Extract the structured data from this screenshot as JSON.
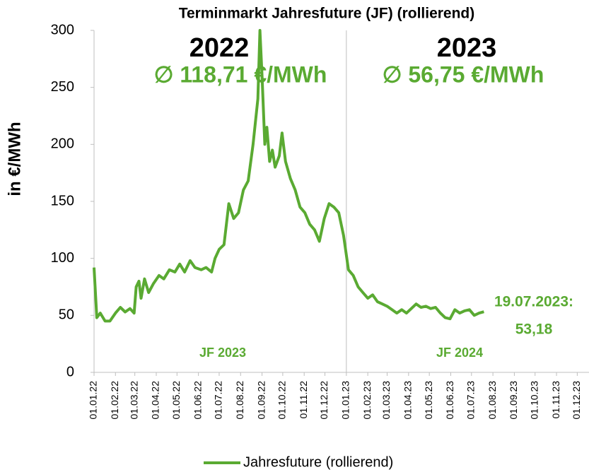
{
  "chart_data": {
    "type": "line",
    "title": "Terminmarkt Jahresfuture (JF) (rollierend)",
    "y_label": "in €/MWh",
    "annotations": [
      "2022",
      "∅ 118,71 €/MWh",
      "2023",
      "∅ 56,75 €/MWh",
      "JF 2023",
      "JF 2024",
      "19.07.2023:",
      "53,18"
    ],
    "xlim": [
      "01.01.22",
      "18.12.23"
    ],
    "xticks": [
      "01.01.22",
      "01.02.22",
      "01.03.22",
      "01.04.22",
      "01.05.22",
      "01.06.22",
      "01.07.22",
      "01.08.22",
      "01.09.22",
      "01.10.22",
      "01.11.22",
      "01.12.22",
      "01.01.23",
      "01.02.23",
      "01.03.23",
      "01.04.23",
      "01.05.23",
      "01.06.23",
      "01.07.23",
      "01.08.23",
      "01.09.23",
      "01.10.23",
      "01.11.23",
      "01.12.23"
    ],
    "ylim": [
      0,
      300
    ],
    "yticks": [
      0,
      50,
      100,
      150,
      200,
      250,
      300
    ],
    "grid": false,
    "legend": "bottom",
    "x": [
      "01.01.22",
      "05.01.22",
      "10.01.22",
      "17.01.22",
      "24.01.22",
      "01.02.22",
      "08.02.22",
      "15.02.22",
      "22.02.22",
      "28.02.22",
      "03.03.22",
      "07.03.22",
      "10.03.22",
      "15.03.22",
      "21.03.22",
      "28.03.22",
      "05.04.22",
      "12.04.22",
      "20.04.22",
      "28.04.22",
      "05.05.22",
      "12.05.22",
      "20.05.22",
      "27.05.22",
      "05.06.22",
      "12.06.22",
      "20.06.22",
      "25.06.22",
      "01.07.22",
      "08.07.22",
      "15.07.22",
      "22.07.22",
      "29.07.22",
      "05.08.22",
      "12.08.22",
      "19.08.22",
      "26.08.22",
      "29.08.22",
      "01.09.22",
      "05.09.22",
      "08.09.22",
      "12.09.22",
      "16.09.22",
      "20.09.22",
      "26.09.22",
      "30.09.22",
      "05.10.22",
      "12.10.22",
      "19.10.22",
      "26.10.22",
      "02.11.22",
      "09.11.22",
      "16.11.22",
      "23.11.22",
      "30.11.22",
      "07.12.22",
      "14.12.22",
      "21.12.22",
      "28.12.22",
      "04.01.23",
      "11.01.23",
      "18.01.23",
      "25.01.23",
      "01.02.23",
      "08.02.23",
      "15.02.23",
      "22.02.23",
      "01.03.23",
      "08.03.23",
      "15.03.23",
      "22.03.23",
      "29.03.23",
      "05.04.23",
      "12.04.23",
      "19.04.23",
      "26.04.23",
      "03.05.23",
      "10.05.23",
      "17.05.23",
      "24.05.23",
      "31.05.23",
      "07.06.23",
      "14.06.23",
      "21.06.23",
      "28.06.23",
      "05.07.23",
      "12.07.23",
      "19.07.23"
    ],
    "series": [
      {
        "name": "Jahresfuture (rollierend)",
        "color": "#5aaa32",
        "values": [
          92,
          48,
          52,
          45,
          45,
          52,
          57,
          53,
          56,
          52,
          75,
          80,
          65,
          82,
          70,
          78,
          85,
          82,
          90,
          88,
          95,
          88,
          98,
          92,
          90,
          92,
          88,
          100,
          108,
          112,
          148,
          135,
          140,
          160,
          168,
          200,
          240,
          300,
          260,
          200,
          215,
          185,
          195,
          180,
          190,
          210,
          185,
          170,
          160,
          145,
          140,
          130,
          125,
          115,
          135,
          148,
          145,
          140,
          120,
          90,
          85,
          75,
          70,
          65,
          68,
          62,
          60,
          58,
          55,
          52,
          55,
          52,
          56,
          60,
          57,
          58,
          56,
          57,
          52,
          48,
          47,
          55,
          52,
          54,
          55,
          50,
          52,
          53.18
        ]
      }
    ]
  }
}
